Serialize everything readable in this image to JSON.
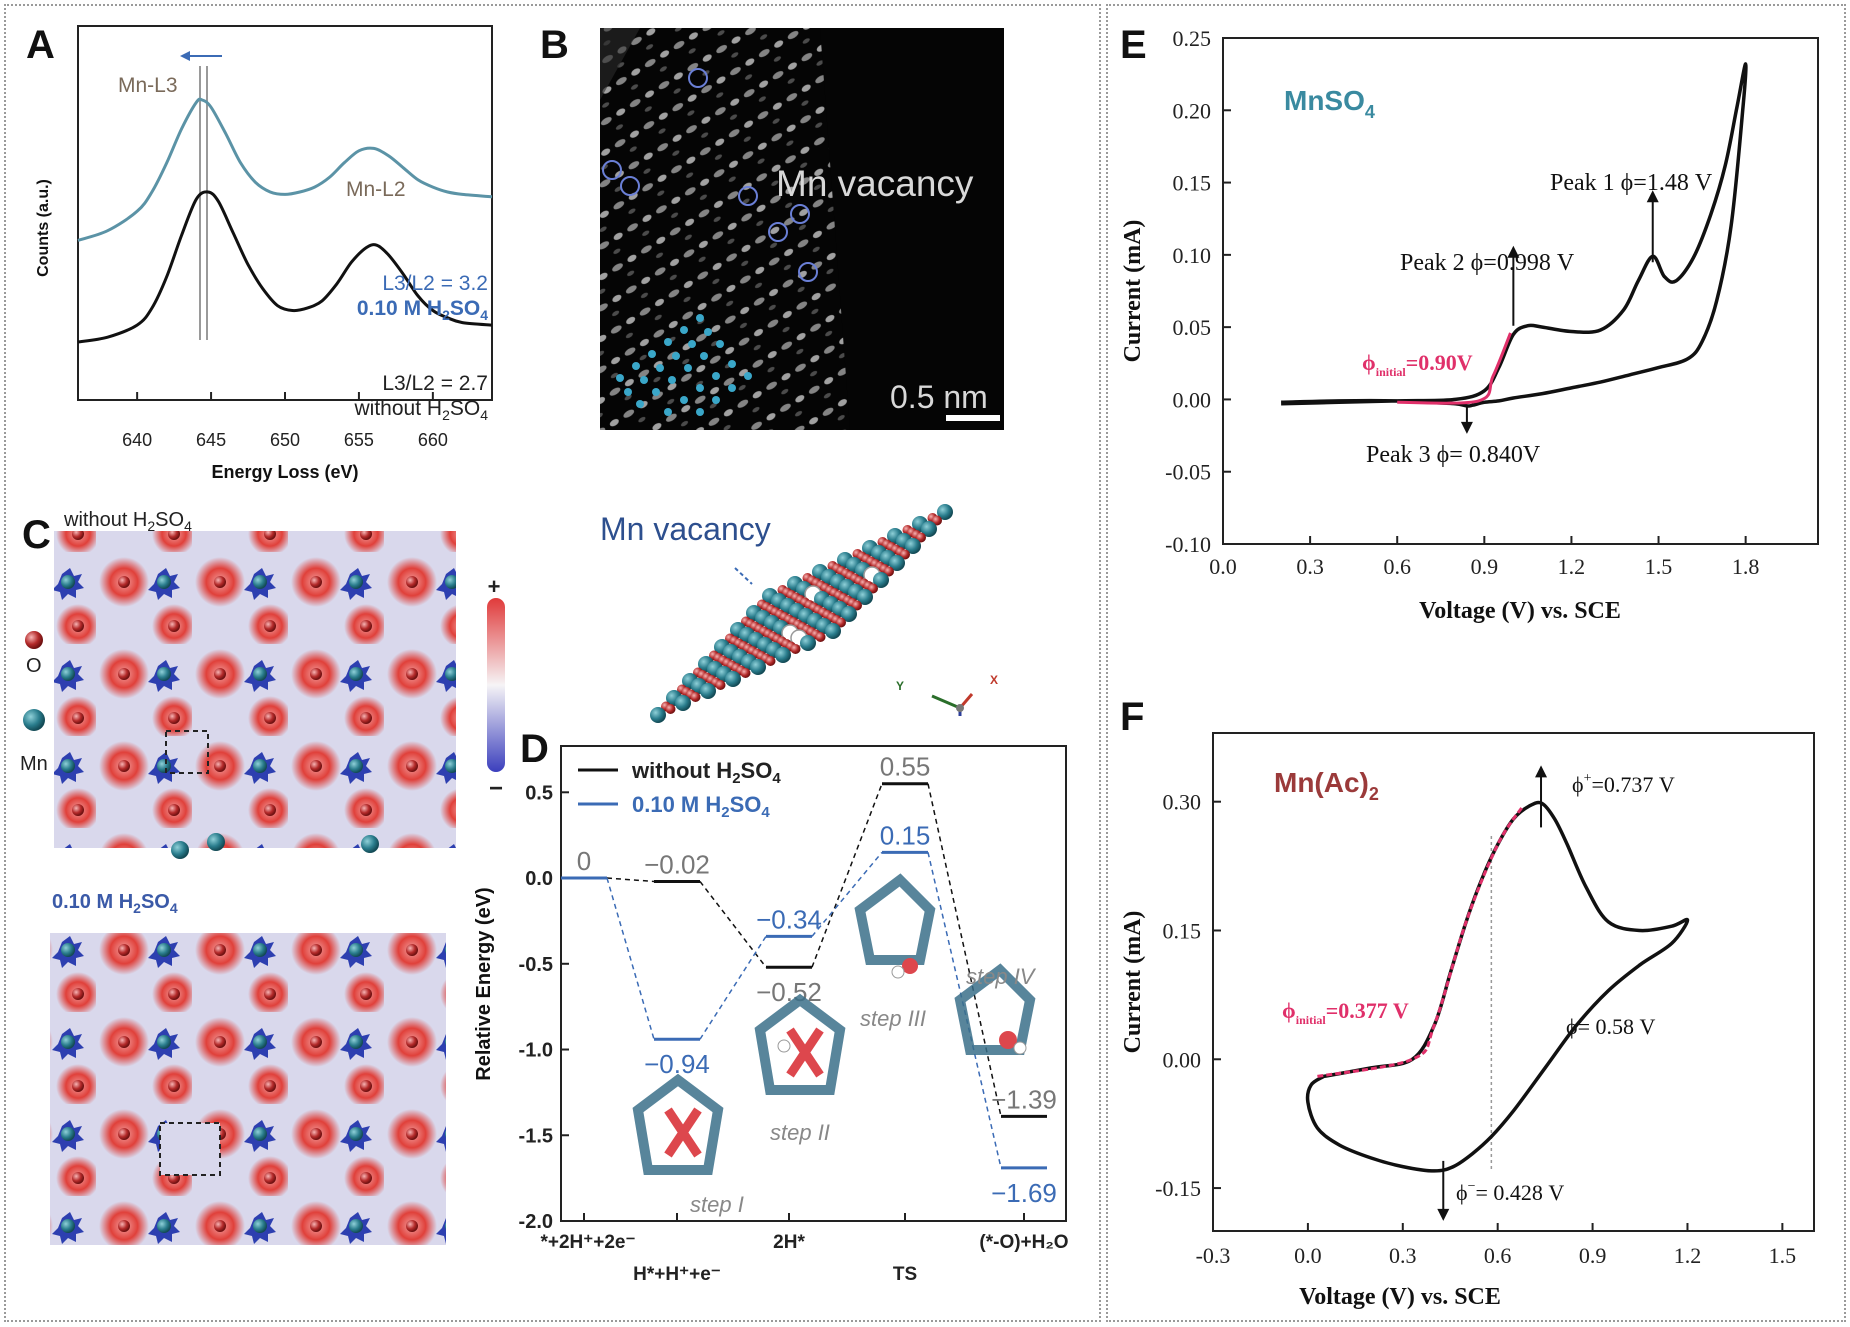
{
  "panels": {
    "A": {
      "letter": "A",
      "xlabel": "Energy Loss (eV)",
      "ylabel": "Counts (a.u.)",
      "peak_l3": "Mn-L3",
      "peak_l2": "Mn-L2",
      "ratio_acid": "L3/L2 = 3.2",
      "ratio_plain": "L3/L2 = 2.7"
    },
    "B": {
      "letter": "B",
      "annotation": "Mn vacancy",
      "scale_bar": "0.5 nm"
    },
    "C": {
      "letter": "C",
      "legend_o": "O",
      "legend_mn": "Mn",
      "structure_label": "Mn vacancy",
      "colorbar_plus": "+",
      "colorbar_minus": "−",
      "axis_y": "Y",
      "axis_x": "X"
    },
    "D": {
      "letter": "D",
      "steps": [
        "step I",
        "step II",
        "step III",
        "step IV"
      ]
    },
    "E": {
      "letter": "E",
      "compound": "MnSO",
      "subscript": "4"
    },
    "F": {
      "letter": "F",
      "compound": "Mn(Ac)",
      "subscript": "2"
    }
  },
  "colors": {
    "teal": "#5b93a6",
    "black": "#111111",
    "blue": "#3b6bb5",
    "red": "#e0306a",
    "navy": "#2d4f8e",
    "brown": "#8b2b2b"
  },
  "chart_data": [
    {
      "panel": "A",
      "type": "line",
      "xlabel": "Energy Loss (eV)",
      "ylabel": "Counts (a.u.)",
      "xlim": [
        636,
        664
      ],
      "x_ticks": [
        640,
        645,
        650,
        655,
        660
      ],
      "series": [
        {
          "name": "0.10 M H2SO4",
          "label_main": "0.10 M H",
          "label_sub": "2",
          "label_tail": "SO",
          "label_sub2": "4",
          "color": "#5b93a6",
          "x": [
            636,
            638,
            640,
            641,
            642,
            643,
            644,
            644.4,
            645,
            646,
            647,
            648,
            649,
            650,
            651,
            652,
            653,
            654,
            655,
            656,
            657,
            658,
            659,
            660,
            661,
            662,
            664
          ],
          "y": [
            0.42,
            0.46,
            0.54,
            0.62,
            0.74,
            0.88,
            0.99,
            1.0,
            0.97,
            0.86,
            0.74,
            0.66,
            0.62,
            0.61,
            0.62,
            0.64,
            0.68,
            0.74,
            0.79,
            0.8,
            0.77,
            0.72,
            0.67,
            0.64,
            0.62,
            0.61,
            0.6
          ]
        },
        {
          "name": "without H2SO4",
          "label_main": "without H",
          "label_sub": "2",
          "label_tail": "SO",
          "label_sub2": "4",
          "color": "#111111",
          "x": [
            636,
            638,
            640,
            641,
            642,
            643,
            644,
            644.8,
            645.5,
            646.5,
            647.5,
            648.5,
            649.5,
            650.5,
            651.5,
            652.5,
            653.5,
            654.5,
            655.5,
            656.2,
            657,
            658,
            659,
            660,
            661,
            662,
            664
          ],
          "y": [
            0.0,
            0.02,
            0.07,
            0.14,
            0.27,
            0.44,
            0.59,
            0.62,
            0.58,
            0.45,
            0.32,
            0.22,
            0.15,
            0.13,
            0.14,
            0.17,
            0.24,
            0.33,
            0.39,
            0.4,
            0.36,
            0.28,
            0.19,
            0.13,
            0.1,
            0.08,
            0.07
          ]
        }
      ]
    },
    {
      "panel": "D",
      "type": "line",
      "ylabel": "Relative Energy (eV)",
      "ylim": [
        -2.0,
        0.7
      ],
      "y_ticks": [
        0.5,
        0.0,
        -0.5,
        -1.0,
        -1.5,
        -2.0
      ],
      "categories": [
        "*+2H⁺+2e⁻",
        "H*+H⁺+e⁻",
        "2H*",
        "TS",
        "(*-O)+H₂O"
      ],
      "series": [
        {
          "name": "without H2SO4",
          "legend_main": "without H",
          "legend_sub": "2",
          "legend_tail": "SO",
          "legend_sub2": "4",
          "color": "#111111",
          "values": [
            0,
            -0.02,
            -0.52,
            0.55,
            -1.39
          ],
          "labels": [
            "0",
            "−0.02",
            "−0.52",
            "0.55",
            "−1.39"
          ]
        },
        {
          "name": "0.10 M H2SO4",
          "legend_main": "0.10 M H",
          "legend_sub": "2",
          "legend_tail": "SO",
          "legend_sub2": "4",
          "color": "#3b6bb5",
          "values": [
            0,
            -0.94,
            -0.34,
            0.15,
            -1.69
          ],
          "labels": [
            "",
            "−0.94",
            "−0.34",
            "0.15",
            "−1.69"
          ]
        }
      ]
    },
    {
      "panel": "E",
      "type": "line",
      "xlabel": "Voltage (V) vs. SCE",
      "ylabel": "Current (mA)",
      "xlim": [
        0.0,
        2.0
      ],
      "ylim": [
        -0.1,
        0.25
      ],
      "x_ticks": [
        0.0,
        0.3,
        0.6,
        0.9,
        1.2,
        1.5,
        1.8
      ],
      "y_ticks": [
        0.25,
        0.2,
        0.15,
        0.1,
        0.05,
        0.0,
        -0.05,
        -0.1
      ],
      "x_tick_labels": [
        "0.0",
        "0.3",
        "0.6",
        "0.9",
        "1.2",
        "1.5",
        "1.8"
      ],
      "y_tick_labels": [
        "0.25",
        "0.20",
        "0.15",
        "0.10",
        "0.05",
        "0.00",
        "-0.05",
        "-0.10"
      ],
      "series": [
        {
          "name": "CV",
          "color": "#111111",
          "x": [
            0.2,
            0.4,
            0.6,
            0.8,
            0.9,
            0.95,
            1.0,
            1.05,
            1.1,
            1.2,
            1.3,
            1.38,
            1.43,
            1.48,
            1.52,
            1.56,
            1.62,
            1.68,
            1.73,
            1.77,
            1.8,
            1.79,
            1.75,
            1.7,
            1.65,
            1.6,
            1.5,
            1.4,
            1.3,
            1.2,
            1.1,
            1.0,
            0.95,
            0.9,
            0.86,
            0.84,
            0.8,
            0.7,
            0.6,
            0.4,
            0.2
          ],
          "y": [
            -0.003,
            -0.002,
            -0.001,
            0.0,
            0.006,
            0.022,
            0.045,
            0.051,
            0.05,
            0.047,
            0.048,
            0.062,
            0.082,
            0.099,
            0.085,
            0.082,
            0.098,
            0.128,
            0.162,
            0.202,
            0.232,
            0.2,
            0.12,
            0.068,
            0.04,
            0.028,
            0.022,
            0.017,
            0.012,
            0.008,
            0.004,
            0.001,
            -0.001,
            -0.002,
            -0.004,
            -0.0045,
            -0.003,
            -0.002,
            -0.001,
            -0.001,
            -0.002
          ]
        },
        {
          "name": "fit",
          "color": "#e0306a",
          "x": [
            0.6,
            0.88,
            0.93,
            0.99
          ],
          "y": [
            -0.002,
            -0.001,
            0.016,
            0.046
          ]
        }
      ],
      "annotations": [
        {
          "text": "Peak 1",
          "x": 1.48,
          "y": 0.099,
          "tail": "ϕ=1.48 V"
        },
        {
          "text": "Peak 2",
          "x": 1.0,
          "y": 0.051,
          "tail": "ϕ=0.998 V"
        },
        {
          "text": "Peak 3",
          "x": 0.84,
          "y": -0.0045,
          "tail": "ϕ= 0.840V"
        },
        {
          "text": "ϕ",
          "sub": "initial",
          "tail": "=0.90V"
        }
      ]
    },
    {
      "panel": "F",
      "type": "line",
      "xlabel": "Voltage (V) vs. SCE",
      "ylabel": "Current (mA)",
      "xlim": [
        -0.3,
        1.6
      ],
      "ylim": [
        -0.2,
        0.38
      ],
      "x_ticks": [
        -0.3,
        0.0,
        0.3,
        0.6,
        0.9,
        1.2,
        1.5
      ],
      "y_ticks": [
        0.3,
        0.15,
        0.0,
        -0.15
      ],
      "x_tick_labels": [
        "-0.3",
        "0.0",
        "0.3",
        "0.6",
        "0.9",
        "1.2",
        "1.5"
      ],
      "y_tick_labels": [
        "0.30",
        "0.15",
        "0.00",
        "-0.15"
      ],
      "series": [
        {
          "name": "CV",
          "color": "#111111",
          "x": [
            0.05,
            0.2,
            0.33,
            0.4,
            0.45,
            0.5,
            0.55,
            0.6,
            0.65,
            0.7,
            0.74,
            0.78,
            0.82,
            0.88,
            0.95,
            1.05,
            1.15,
            1.2,
            1.15,
            1.05,
            0.95,
            0.85,
            0.75,
            0.65,
            0.58,
            0.52,
            0.46,
            0.4,
            0.3,
            0.2,
            0.1,
            0.03,
            0.0,
            0.01,
            0.05
          ],
          "y": [
            -0.02,
            -0.01,
            0.0,
            0.04,
            0.1,
            0.16,
            0.21,
            0.25,
            0.28,
            0.295,
            0.298,
            0.28,
            0.25,
            0.2,
            0.16,
            0.15,
            0.155,
            0.162,
            0.135,
            0.11,
            0.08,
            0.04,
            -0.01,
            -0.06,
            -0.09,
            -0.11,
            -0.125,
            -0.13,
            -0.125,
            -0.115,
            -0.1,
            -0.08,
            -0.05,
            -0.03,
            -0.02
          ]
        },
        {
          "name": "fit",
          "color": "#e0306a",
          "x": [
            0.03,
            0.33,
            0.4,
            0.5,
            0.6,
            0.68
          ],
          "y": [
            -0.02,
            0.0,
            0.04,
            0.16,
            0.25,
            0.295
          ]
        }
      ],
      "annotations": [
        {
          "text": "ϕ",
          "sup": "+",
          "tail": "=0.737 V",
          "x": 0.737,
          "y": 0.298
        },
        {
          "text": "ϕ",
          "sup": "−",
          "tail": "= 0.428 V",
          "x": 0.428,
          "y": -0.13
        },
        {
          "text": "ϕ= 0.58 V",
          "x": 0.58
        },
        {
          "text": "ϕ",
          "sub": "initial",
          "tail": "=0.377 V"
        }
      ]
    }
  ]
}
